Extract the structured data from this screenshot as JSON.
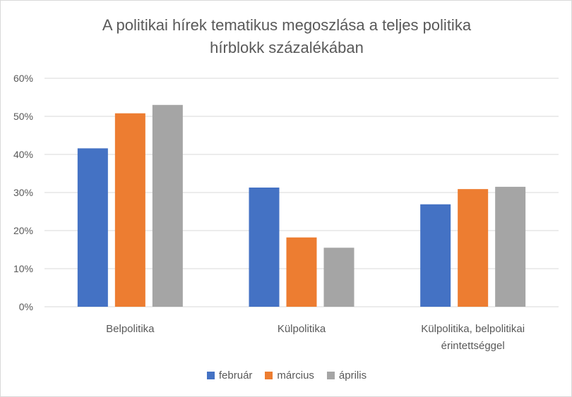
{
  "chart_data": {
    "type": "bar",
    "title_lines": [
      "A politikai hírek tematikus megoszlása a teljes politika",
      "hírblokk százalékában"
    ],
    "categories": [
      [
        "Belpolitika"
      ],
      [
        "Külpolitika"
      ],
      [
        "Külpolitika, belpolitikai",
        "érintettséggel"
      ]
    ],
    "series": [
      {
        "name": "február",
        "color": "#4472c4",
        "values": [
          41.6,
          31.3,
          26.9
        ]
      },
      {
        "name": "március",
        "color": "#ed7d31",
        "values": [
          50.8,
          18.2,
          30.9
        ]
      },
      {
        "name": "április",
        "color": "#a5a5a5",
        "values": [
          53.0,
          15.5,
          31.5
        ]
      }
    ],
    "y_ticks": [
      "0%",
      "10%",
      "20%",
      "30%",
      "40%",
      "50%",
      "60%"
    ],
    "ylim": [
      0,
      60
    ],
    "ylabel": "",
    "xlabel": "",
    "grid": true,
    "legend_position": "bottom"
  }
}
